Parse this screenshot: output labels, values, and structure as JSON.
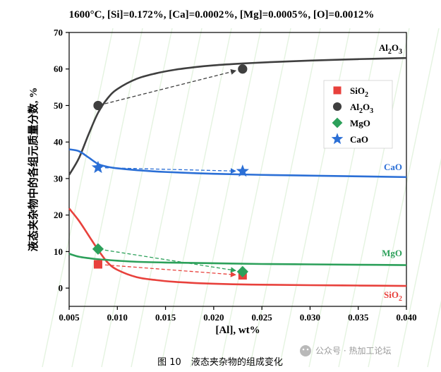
{
  "chart_data": {
    "type": "line",
    "title": "1600°C, [Si]=0.172%, [Ca]=0.0002%, [Mg]=0.0005%, [O]=0.0012%",
    "xlabel": "[Al], wt%",
    "ylabel": "液态夹杂物中的各组元质量分数, %",
    "xlim": [
      0.005,
      0.04
    ],
    "ylim": [
      -5,
      70
    ],
    "xticks": [
      "0.005",
      "0.010",
      "0.015",
      "0.020",
      "0.025",
      "0.030",
      "0.035",
      "0.040"
    ],
    "yticks": [
      "0",
      "10",
      "20",
      "30",
      "40",
      "50",
      "60",
      "70"
    ],
    "legend_position": "upper-right",
    "series": [
      {
        "name": "SiO2",
        "line_label": "SiO2",
        "color": "#e8413c",
        "marker": "square",
        "curve": {
          "x": [
            0.005,
            0.006,
            0.007,
            0.008,
            0.009,
            0.01,
            0.012,
            0.014,
            0.016,
            0.018,
            0.02,
            0.023,
            0.026,
            0.03,
            0.035,
            0.04
          ],
          "y": [
            21.8,
            18.5,
            14.5,
            10.5,
            7.0,
            5.0,
            3.0,
            2.2,
            1.7,
            1.4,
            1.2,
            1.0,
            0.9,
            0.8,
            0.7,
            0.6
          ]
        },
        "points": {
          "x": [
            0.008,
            0.023
          ],
          "y": [
            6.5,
            3.5
          ]
        }
      },
      {
        "name": "Al2O3",
        "line_label": "Al2O3",
        "color": "#3f3f3f",
        "marker": "circle",
        "curve": {
          "x": [
            0.005,
            0.006,
            0.007,
            0.008,
            0.009,
            0.01,
            0.012,
            0.014,
            0.016,
            0.018,
            0.02,
            0.023,
            0.026,
            0.03,
            0.035,
            0.04
          ],
          "y": [
            31.0,
            35.5,
            42.0,
            48.0,
            52.0,
            54.5,
            57.3,
            58.8,
            59.8,
            60.5,
            61.0,
            61.5,
            61.9,
            62.3,
            62.7,
            63.0
          ]
        },
        "points": {
          "x": [
            0.008,
            0.023
          ],
          "y": [
            50.0,
            60.0
          ]
        }
      },
      {
        "name": "MgO",
        "line_label": "MgO",
        "color": "#2ca05a",
        "marker": "diamond",
        "curve": {
          "x": [
            0.005,
            0.006,
            0.007,
            0.008,
            0.009,
            0.01,
            0.012,
            0.015,
            0.02,
            0.025,
            0.03,
            0.035,
            0.04
          ],
          "y": [
            9.4,
            8.6,
            8.2,
            7.9,
            7.7,
            7.5,
            7.2,
            7.0,
            6.8,
            6.6,
            6.5,
            6.4,
            6.3
          ]
        },
        "points": {
          "x": [
            0.008,
            0.023
          ],
          "y": [
            10.7,
            4.5
          ]
        }
      },
      {
        "name": "CaO",
        "line_label": "CaO",
        "color": "#2b6fd6",
        "marker": "star",
        "curve": {
          "x": [
            0.005,
            0.006,
            0.007,
            0.008,
            0.009,
            0.01,
            0.012,
            0.015,
            0.02,
            0.025,
            0.03,
            0.035,
            0.04
          ],
          "y": [
            38.0,
            37.5,
            35.8,
            34.0,
            33.2,
            32.8,
            32.3,
            31.8,
            31.3,
            31.0,
            30.8,
            30.6,
            30.4
          ]
        },
        "points": {
          "x": [
            0.008,
            0.023
          ],
          "y": [
            33.0,
            32.0
          ]
        }
      }
    ]
  },
  "caption": {
    "figure_no": "图  10",
    "text": "液态夹杂物的组成变化"
  },
  "watermark": "公众号 · 热加工论坛"
}
